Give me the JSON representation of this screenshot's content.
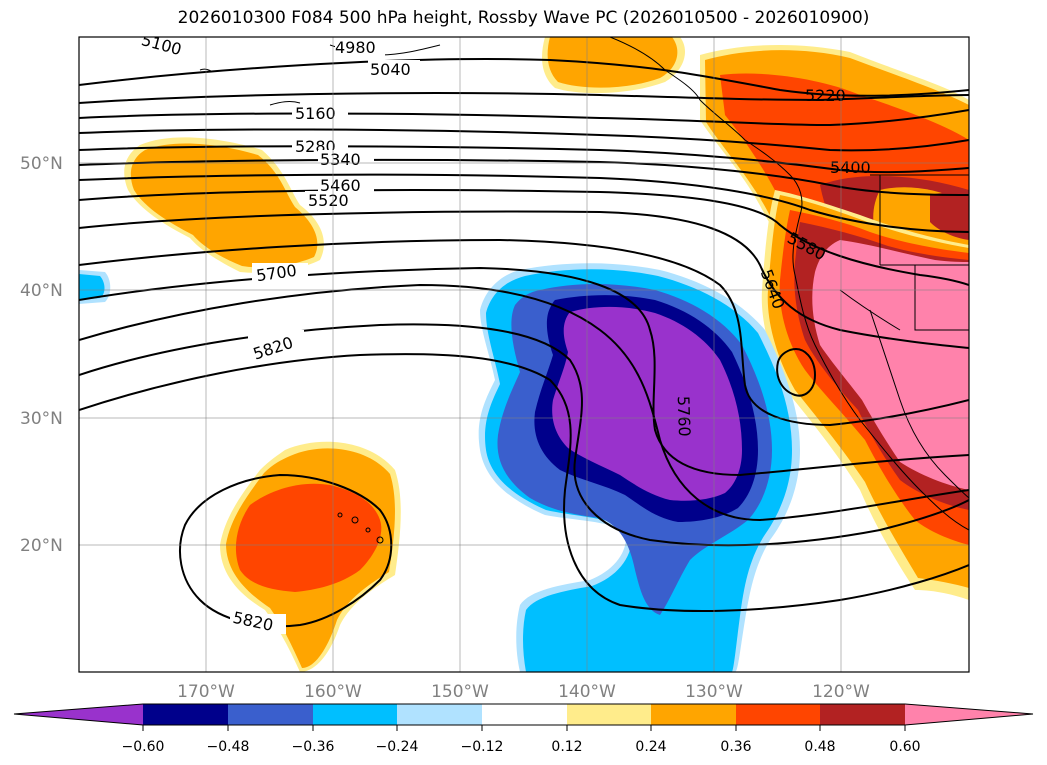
{
  "title": "2026010300 F084 500 hPa height, Rossby Wave PC (2026010500 - 2026010900)",
  "lat_labels": [
    "50°N",
    "40°N",
    "30°N",
    "20°N"
  ],
  "lon_labels": [
    "170°W",
    "160°W",
    "150°W",
    "140°W",
    "130°W",
    "120°W"
  ],
  "contour_labels": [
    "5100",
    "4980",
    "5040",
    "5220",
    "5160",
    "5280",
    "5340",
    "5400",
    "5460",
    "5520",
    "5580",
    "5640",
    "5700",
    "5820",
    "5760",
    "5820"
  ],
  "colorbar": {
    "ticks": [
      "−0.60",
      "−0.48",
      "−0.36",
      "−0.24",
      "−0.12",
      "0.12",
      "0.24",
      "0.36",
      "0.48",
      "0.60"
    ],
    "colors": [
      "#9932cc",
      "#00008b",
      "#3a5fcd",
      "#00bfff",
      "#b0e2ff",
      "#ffffff",
      "#ffec8b",
      "#ffa500",
      "#ff4500",
      "#b22222",
      "#ff82ab"
    ]
  },
  "colors": {
    "orange": "#ffa500",
    "orangered": "#ff4500",
    "firebrick": "#b22222",
    "pink": "#ff82ab",
    "lightyellow": "#ffec8b",
    "purple": "#9932cc",
    "navy": "#00008b",
    "royalblue": "#3a5fcd",
    "deepskyblue": "#00bfff",
    "lightblue": "#b0e2ff"
  }
}
